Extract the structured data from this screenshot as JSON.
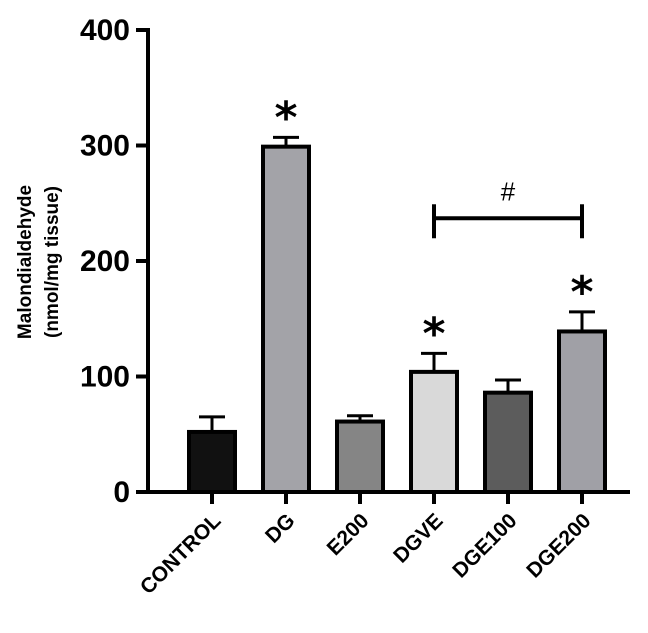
{
  "chart_data": {
    "type": "bar",
    "title": "",
    "ylabel_lines": [
      "Malondialdehyde",
      "(nmol/mg tissue)"
    ],
    "xlabel": "",
    "ylim": [
      0,
      400
    ],
    "yticks": [
      "0",
      "100",
      "200",
      "300",
      "400"
    ],
    "categories": [
      "CONTROL",
      "DG",
      "E200",
      "DGVE",
      "DGE100",
      "DGE200"
    ],
    "values": [
      52,
      299,
      61,
      104,
      86,
      139
    ],
    "errors": [
      13,
      8,
      5,
      16,
      11,
      17
    ],
    "colors": [
      "#111111",
      "#a3a3a8",
      "#858585",
      "#d9d9d9",
      "#5c5c5c",
      "#a0a0a6"
    ],
    "significance": [
      "",
      "*",
      "",
      "*",
      "",
      "*"
    ],
    "bracket": {
      "from": "DGVE",
      "to": "DGE200",
      "label": "#",
      "y": 237
    }
  }
}
